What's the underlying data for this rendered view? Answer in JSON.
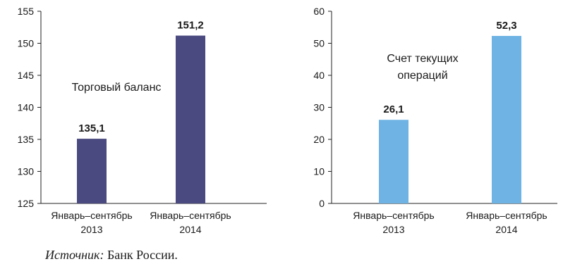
{
  "chart_data": [
    {
      "type": "bar",
      "title": "",
      "annotation_lines": [
        "Торговый баланс"
      ],
      "categories": [
        [
          "Январь–сентябрь",
          "2013"
        ],
        [
          "Январь–сентябрь",
          "2014"
        ]
      ],
      "values": [
        135.1,
        151.2
      ],
      "value_labels": [
        "135,1",
        "151,2"
      ],
      "ylim": [
        125,
        155
      ],
      "yticks": [
        125,
        130,
        135,
        140,
        145,
        150,
        155
      ],
      "xlabel": "",
      "ylabel": "",
      "grid": false,
      "legend": "none",
      "bar_color": "#4a4a80"
    },
    {
      "type": "bar",
      "title": "",
      "annotation_lines": [
        "Счет текущих",
        "операций"
      ],
      "categories": [
        [
          "Январь–сентябрь",
          "2013"
        ],
        [
          "Январь–сентябрь",
          "2014"
        ]
      ],
      "values": [
        26.1,
        52.3
      ],
      "value_labels": [
        "26,1",
        "52,3"
      ],
      "ylim": [
        0,
        60
      ],
      "yticks": [
        0,
        10,
        20,
        30,
        40,
        50,
        60
      ],
      "xlabel": "",
      "ylabel": "",
      "grid": false,
      "legend": "none",
      "bar_color": "#6eb3e4"
    }
  ],
  "source": {
    "label": "Источник:",
    "text": "Банк России."
  }
}
